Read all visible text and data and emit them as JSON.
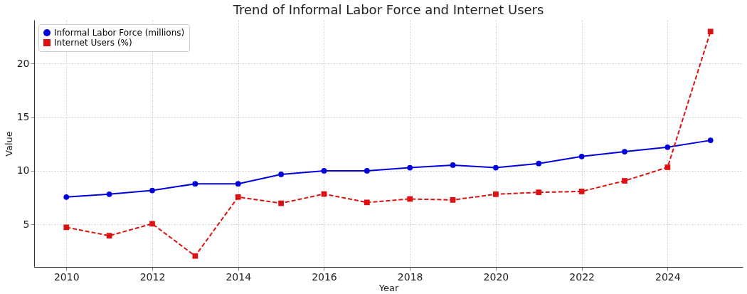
{
  "chart_data": {
    "type": "line",
    "title": "Trend of Informal Labor Force and Internet Users",
    "xlabel": "Year",
    "ylabel": "Value",
    "x": [
      2010,
      2011,
      2012,
      2013,
      2014,
      2015,
      2016,
      2017,
      2018,
      2019,
      2020,
      2021,
      2022,
      2023,
      2024,
      2025
    ],
    "series": [
      {
        "name": "Informal Labor Force (millions)",
        "color": "#0000dd",
        "marker": "circle",
        "line_style": "solid",
        "values": [
          7.56,
          7.82,
          8.17,
          8.79,
          8.79,
          9.67,
          10.0,
          10.0,
          10.29,
          10.53,
          10.29,
          10.68,
          11.34,
          11.78,
          12.2,
          12.84
        ]
      },
      {
        "name": "Internet Users (%)",
        "color": "#dd1111",
        "marker": "square",
        "line_style": "dashed",
        "values": [
          4.74,
          3.96,
          5.07,
          2.07,
          7.56,
          6.98,
          7.84,
          7.06,
          7.38,
          7.29,
          7.82,
          8.0,
          8.08,
          9.07,
          10.33,
          22.97
        ]
      }
    ],
    "xlim": [
      2009.25,
      2025.75
    ],
    "xticks": [
      2010,
      2012,
      2014,
      2016,
      2018,
      2020,
      2022,
      2024
    ],
    "ylim": [
      1.05,
      24.05
    ],
    "yticks": [
      5,
      10,
      15,
      20
    ],
    "grid": true,
    "legend": "top left"
  }
}
